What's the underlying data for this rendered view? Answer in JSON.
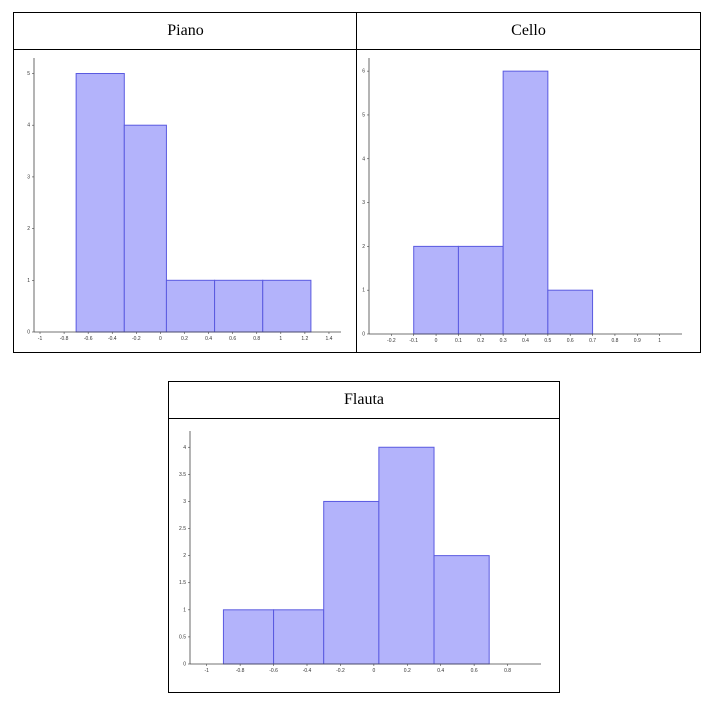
{
  "colors": {
    "bar_fill": "#b3b3fb",
    "bar_stroke": "#5a5ae0",
    "axis": "#444444"
  },
  "chart_data": [
    {
      "type": "bar",
      "title": "Piano",
      "bins": [
        [
          -0.7,
          -0.3
        ],
        [
          -0.3,
          0.05
        ],
        [
          0.05,
          0.45
        ],
        [
          0.45,
          0.85
        ],
        [
          0.85,
          1.25
        ]
      ],
      "values": [
        5,
        4,
        1,
        1,
        1
      ],
      "xlim": [
        -1.05,
        1.5
      ],
      "ylim": [
        0,
        5.3
      ],
      "xticks": [
        "-1",
        "-0.8",
        "-0.6",
        "-0.4",
        "-0.2",
        "0",
        "0.2",
        "0.4",
        "0.6",
        "0.8",
        "1",
        "1.2",
        "1.4"
      ],
      "xtick_values": [
        -1,
        -0.8,
        -0.6,
        -0.4,
        -0.2,
        0,
        0.2,
        0.4,
        0.6,
        0.8,
        1,
        1.2,
        1.4
      ],
      "yticks": [
        "0",
        "1",
        "2",
        "3",
        "4",
        "5"
      ],
      "ytick_values": [
        0,
        1,
        2,
        3,
        4,
        5
      ],
      "grid": false
    },
    {
      "type": "bar",
      "title": "Cello",
      "bins": [
        [
          -0.1,
          0.1
        ],
        [
          0.1,
          0.3
        ],
        [
          0.3,
          0.5
        ],
        [
          0.5,
          0.7
        ]
      ],
      "values": [
        2,
        2,
        6,
        1
      ],
      "xlim": [
        -0.3,
        1.1
      ],
      "ylim": [
        0,
        6.3
      ],
      "xticks": [
        "-0.2",
        "-0.1",
        "0",
        "0.1",
        "0.2",
        "0.3",
        "0.4",
        "0.5",
        "0.6",
        "0.7",
        "0.8",
        "0.9",
        "1"
      ],
      "xtick_values": [
        -0.2,
        -0.1,
        0,
        0.1,
        0.2,
        0.3,
        0.4,
        0.5,
        0.6,
        0.7,
        0.8,
        0.9,
        1
      ],
      "yticks": [
        "0",
        "1",
        "2",
        "3",
        "4",
        "5",
        "6"
      ],
      "ytick_values": [
        0,
        1,
        2,
        3,
        4,
        5,
        6
      ],
      "grid": false
    },
    {
      "type": "bar",
      "title": "Flauta",
      "bins": [
        [
          -0.9,
          -0.6
        ],
        [
          -0.6,
          -0.3
        ],
        [
          -0.3,
          0.03
        ],
        [
          0.03,
          0.36
        ],
        [
          0.36,
          0.69
        ]
      ],
      "values": [
        1,
        1,
        3,
        4,
        2
      ],
      "xlim": [
        -1.1,
        1.0
      ],
      "ylim": [
        0,
        4.3
      ],
      "xticks": [
        "-1",
        "-0.8",
        "-0.6",
        "-0.4",
        "-0.2",
        "0",
        "0.2",
        "0.4",
        "0.6",
        "0.8"
      ],
      "xtick_values": [
        -1,
        -0.8,
        -0.6,
        -0.4,
        -0.2,
        0,
        0.2,
        0.4,
        0.6,
        0.8
      ],
      "yticks": [
        "0",
        "0.5",
        "1",
        "1.5",
        "2",
        "2.5",
        "3",
        "3.5",
        "4"
      ],
      "ytick_values": [
        0,
        0.5,
        1,
        1.5,
        2,
        2.5,
        3,
        3.5,
        4
      ],
      "grid": false
    }
  ]
}
